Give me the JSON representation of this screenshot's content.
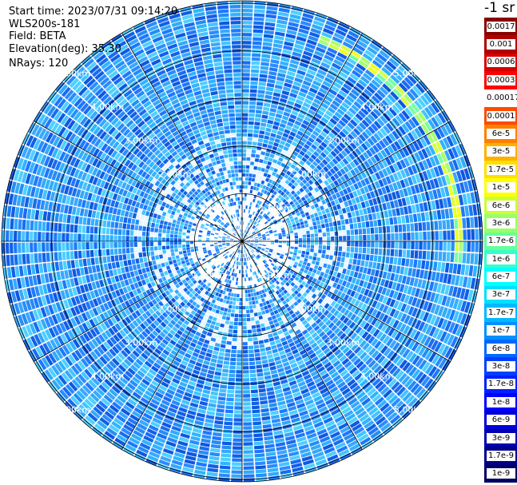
{
  "info": {
    "start_time": "Start time: 2023/07/31 09:14:20",
    "instrument": "WLS200s-181",
    "field": "Field: BETA",
    "elevation": "Elevation(deg): 35.30",
    "nrays": "NRays: 120"
  },
  "chart_data": {
    "type": "heatmap",
    "projection": "polar-ppi",
    "field": "BETA",
    "elevation_deg": 35.3,
    "n_rays": 120,
    "range_rings_km": [
      1,
      2,
      3,
      4,
      5
    ],
    "range_ring_labels": [
      "1.00km",
      "2.00km",
      "3.00km",
      "4.00km",
      "5.00km"
    ],
    "max_range_km": 5.05,
    "background_level": "1.7e-8",
    "features": [
      {
        "description": "enhanced band",
        "azimuth_deg_start": 20,
        "azimuth_deg_end": 95,
        "range_km": 4.55,
        "level": "3e-6"
      }
    ],
    "colorbar": {
      "title": "-1 sr",
      "labels": [
        "0.0017",
        "0.001",
        "0.0006",
        "0.0003",
        "0.00017",
        "0.0001",
        "6e-5",
        "3e-5",
        "1.7e-5",
        "1e-5",
        "6e-6",
        "3e-6",
        "1.7e-6",
        "1e-6",
        "6e-7",
        "3e-7",
        "1.7e-7",
        "1e-7",
        "6e-8",
        "3e-8",
        "1.7e-8",
        "1e-8",
        "6e-9",
        "3e-9",
        "1.7e-9",
        "1e-9"
      ],
      "colors": [
        "#8a0000",
        "#b00000",
        "#d80000",
        "#ff0000",
        "#ffffff",
        "#ff4a00",
        "#ff8000",
        "#ffb000",
        "#ffe000",
        "#ffff00",
        "#ccff33",
        "#99ff66",
        "#66ff99",
        "#33ffcc",
        "#00ffff",
        "#00e0ff",
        "#00b8ff",
        "#0090ff",
        "#0068ff",
        "#0040ff",
        "#0020ff",
        "#0000ff",
        "#0000d8",
        "#0000b0",
        "#000088",
        "#000060"
      ]
    }
  }
}
